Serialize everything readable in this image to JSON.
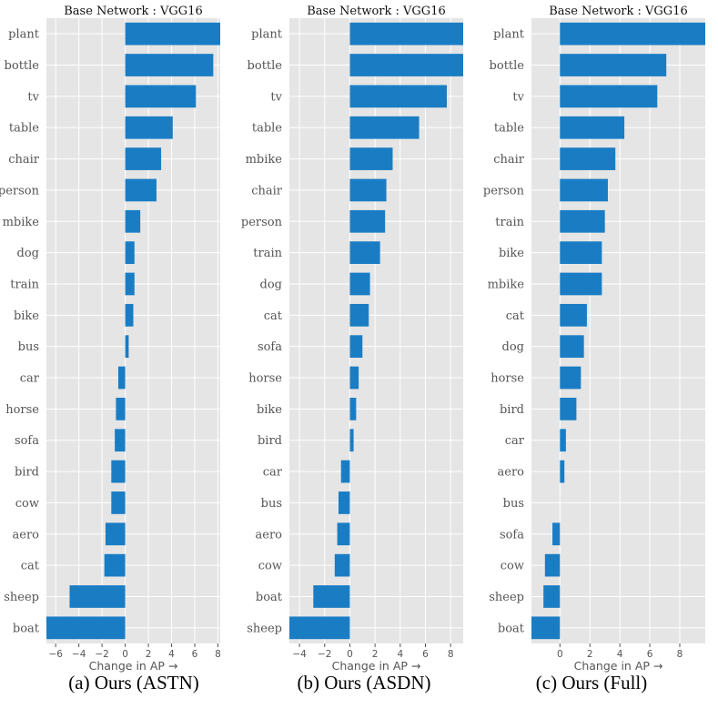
{
  "chart_data": [
    {
      "type": "bar",
      "orientation": "horizontal",
      "title": "Base Network : VGG16",
      "xlabel": "Change in AP →",
      "caption": "(a) Ours (ASTN)",
      "categories": [
        "plant",
        "bottle",
        "tv",
        "table",
        "chair",
        "person",
        "mbike",
        "dog",
        "train",
        "bike",
        "bus",
        "car",
        "horse",
        "sofa",
        "bird",
        "cow",
        "aero",
        "cat",
        "sheep",
        "boat"
      ],
      "values": [
        8.2,
        7.6,
        6.1,
        4.1,
        3.1,
        2.7,
        1.3,
        0.8,
        0.8,
        0.7,
        0.3,
        -0.6,
        -0.8,
        -0.9,
        -1.2,
        -1.2,
        -1.7,
        -1.8,
        -4.8,
        -6.8
      ],
      "xlim": [
        -6.8,
        8.2
      ],
      "xticks": [
        -6,
        -4,
        -2,
        0,
        2,
        4,
        6,
        8
      ],
      "xtick_labels": [
        "−6",
        "−4",
        "−2",
        "0",
        "2",
        "4",
        "6",
        "8"
      ],
      "grid": true
    },
    {
      "type": "bar",
      "orientation": "horizontal",
      "title": "Base Network : VGG16",
      "xlabel": "Change in AP →",
      "caption": "(b) Ours (ASDN)",
      "categories": [
        "plant",
        "bottle",
        "tv",
        "table",
        "mbike",
        "chair",
        "person",
        "train",
        "dog",
        "cat",
        "sofa",
        "horse",
        "bike",
        "bird",
        "car",
        "bus",
        "aero",
        "cow",
        "boat",
        "sheep"
      ],
      "values": [
        9.0,
        9.0,
        7.7,
        5.5,
        3.4,
        2.9,
        2.8,
        2.4,
        1.6,
        1.5,
        1.0,
        0.7,
        0.5,
        0.3,
        -0.7,
        -0.9,
        -1.0,
        -1.2,
        -2.9,
        -4.8
      ],
      "xlim": [
        -4.8,
        9.0
      ],
      "xticks": [
        -4,
        -2,
        0,
        2,
        4,
        6,
        8
      ],
      "xtick_labels": [
        "−4",
        "−2",
        "0",
        "2",
        "4",
        "6",
        "8"
      ],
      "grid": true
    },
    {
      "type": "bar",
      "orientation": "horizontal",
      "title": "Base Network : VGG16",
      "xlabel": "Change in AP →",
      "caption": "(c) Ours (Full)",
      "categories": [
        "plant",
        "bottle",
        "tv",
        "table",
        "chair",
        "person",
        "train",
        "bike",
        "mbike",
        "cat",
        "dog",
        "horse",
        "bird",
        "car",
        "aero",
        "bus",
        "sofa",
        "cow",
        "sheep",
        "boat"
      ],
      "values": [
        9.7,
        7.1,
        6.5,
        4.3,
        3.7,
        3.2,
        3.0,
        2.8,
        2.8,
        1.8,
        1.6,
        1.4,
        1.1,
        0.4,
        0.3,
        0.0,
        -0.5,
        -1.0,
        -1.1,
        -1.9
      ],
      "xlim": [
        -1.9,
        9.7
      ],
      "xticks": [
        0,
        2,
        4,
        6,
        8
      ],
      "xtick_labels": [
        "0",
        "2",
        "4",
        "6",
        "8"
      ],
      "grid": true
    }
  ],
  "colors": {
    "bar": "#1a7dc4",
    "plot_background": "#e5e5e5",
    "grid": "#ffffff",
    "axis_text": "#555555",
    "title_text": "#111111"
  }
}
